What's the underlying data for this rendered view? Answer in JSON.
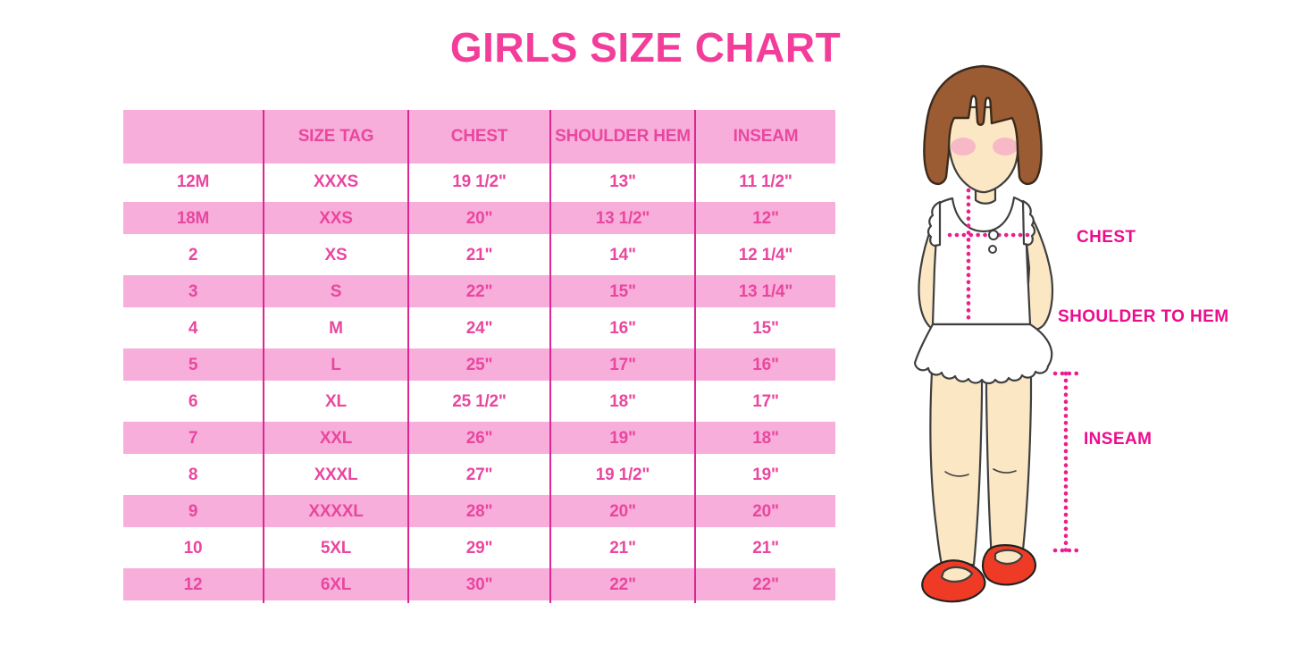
{
  "chart_data": {
    "type": "table",
    "title": "GIRLS SIZE CHART",
    "columns": [
      "",
      "SIZE TAG",
      "CHEST",
      "SHOULDER HEM",
      "INSEAM"
    ],
    "rows": [
      [
        "12M",
        "XXXS",
        "19 1/2\"",
        "13\"",
        "11 1/2\""
      ],
      [
        "18M",
        "XXS",
        "20\"",
        "13 1/2\"",
        "12\""
      ],
      [
        "2",
        "XS",
        "21\"",
        "14\"",
        "12 1/4\""
      ],
      [
        "3",
        "S",
        "22\"",
        "15\"",
        "13 1/4\""
      ],
      [
        "4",
        "M",
        "24\"",
        "16\"",
        "15\""
      ],
      [
        "5",
        "L",
        "25\"",
        "17\"",
        "16\""
      ],
      [
        "6",
        "XL",
        "25 1/2\"",
        "18\"",
        "17\""
      ],
      [
        "7",
        "XXL",
        "26\"",
        "19\"",
        "18\""
      ],
      [
        "8",
        "XXXL",
        "27\"",
        "19 1/2\"",
        "19\""
      ],
      [
        "9",
        "XXXXL",
        "28\"",
        "20\"",
        "20\""
      ],
      [
        "10",
        "5XL",
        "29\"",
        "21\"",
        "21\""
      ],
      [
        "12",
        "6XL",
        "30\"",
        "22\"",
        "22\""
      ]
    ]
  },
  "figure": {
    "labels": {
      "chest": "CHEST",
      "shoulder_to_hem": "SHOULDER TO HEM",
      "inseam": "INSEAM"
    }
  },
  "colors": {
    "title_pink": "#F33D9B",
    "row_pink": "#F8AEDA",
    "table_text_pink": "#E9479F",
    "divider_magenta": "#DC2792",
    "label_magenta": "#EC0C8C",
    "dot_magenta": "#EC1E8E",
    "skin": "#FBE7C4",
    "hair_brown": "#9B5C33",
    "shoe_red": "#EF3B25"
  }
}
